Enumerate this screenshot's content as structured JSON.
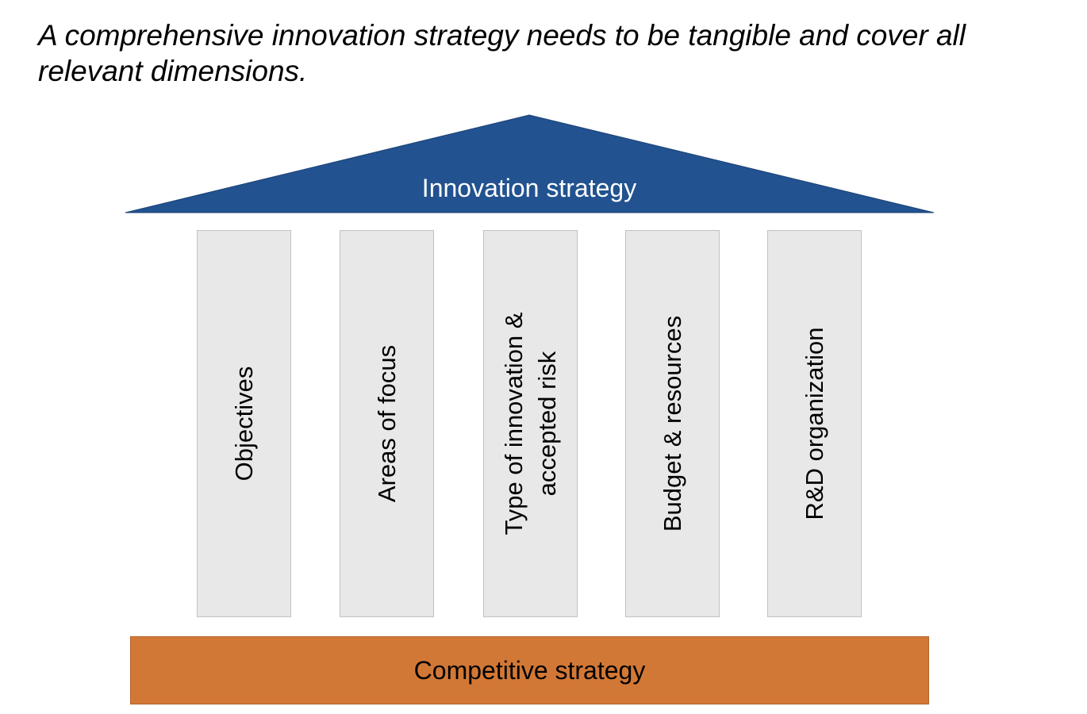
{
  "headline": {
    "line1": "A comprehensive innovation strategy needs to be tangible and cover all",
    "line2": "relevant dimensions."
  },
  "roof": {
    "label": "Innovation strategy",
    "color": "#22528f"
  },
  "pillars": [
    {
      "label": "Objectives"
    },
    {
      "label": "Areas of focus"
    },
    {
      "label": "Type of innovation & accepted risk"
    },
    {
      "label": "Budget & resources"
    },
    {
      "label": "R&D organization"
    }
  ],
  "foundation": {
    "label": "Competitive strategy",
    "color": "#d27836"
  }
}
